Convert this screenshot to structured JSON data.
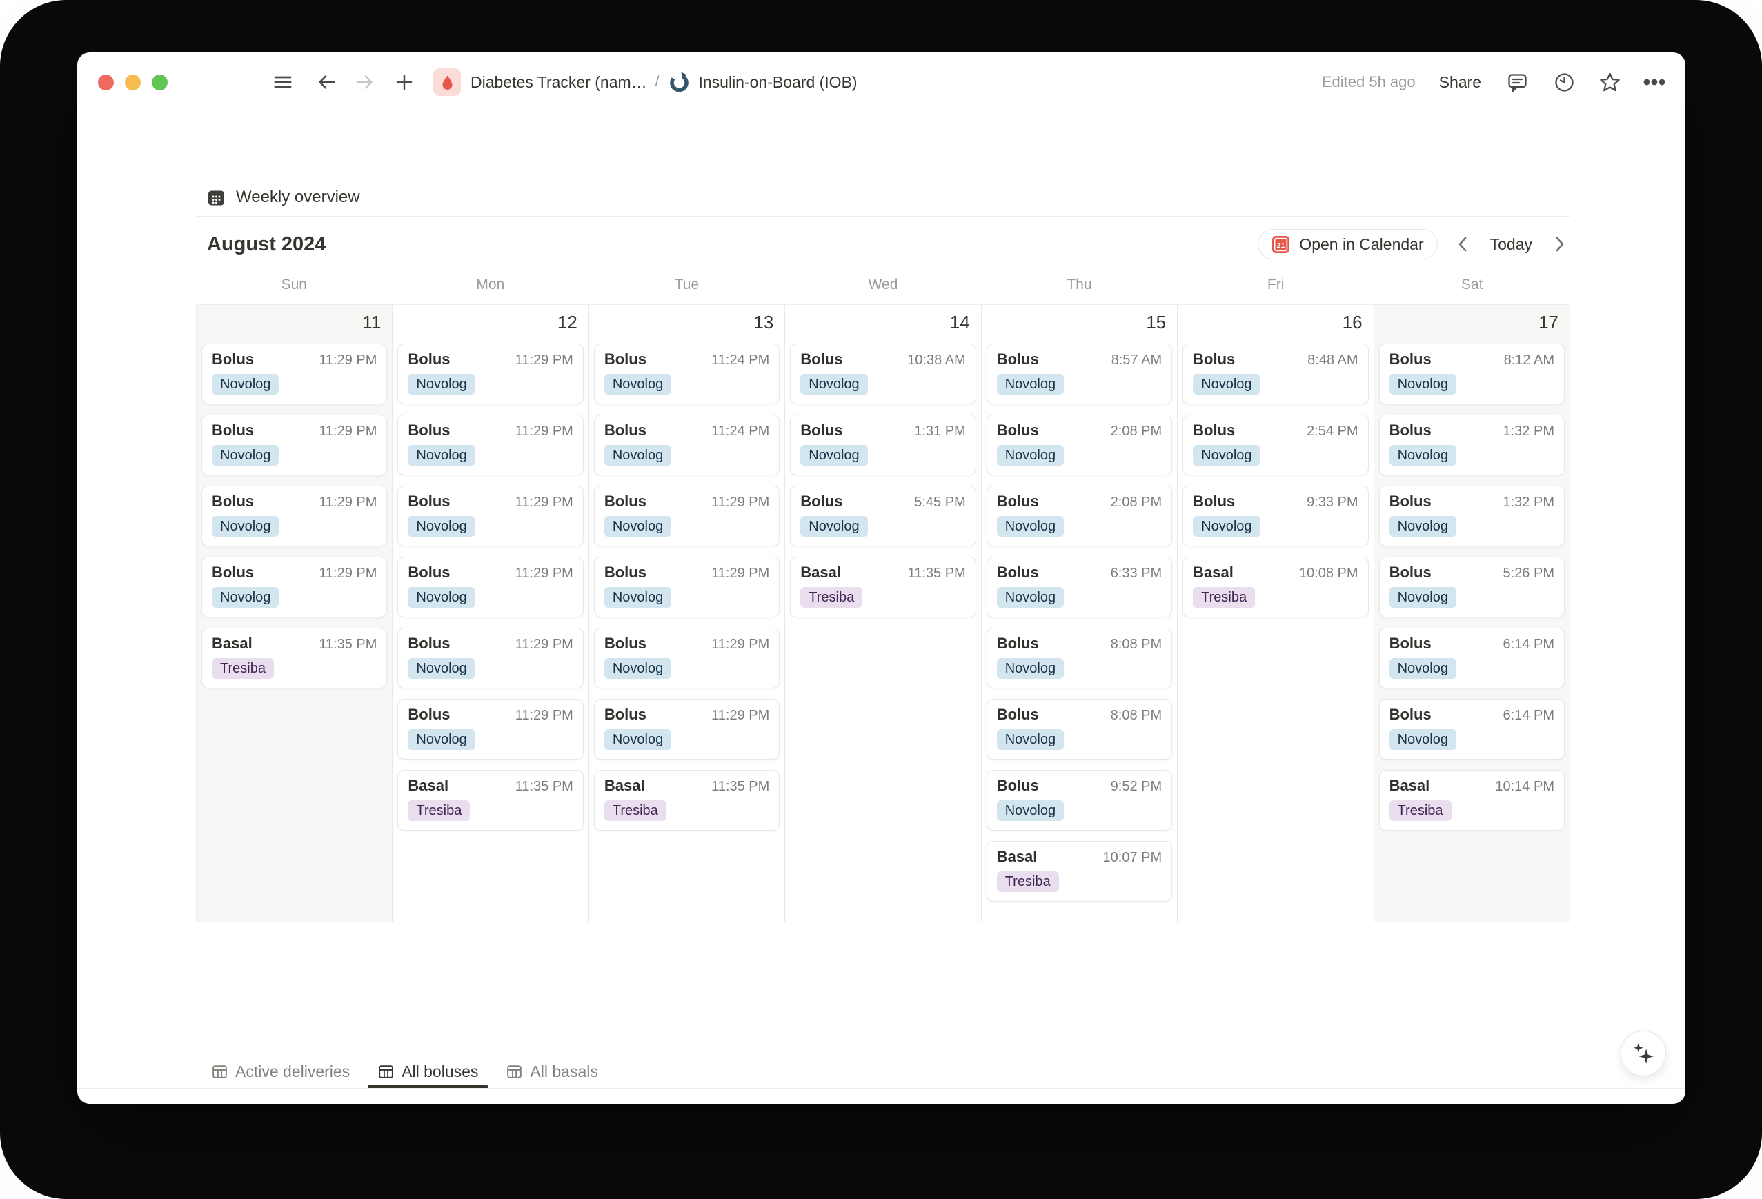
{
  "titlebar": {
    "breadcrumb1": "Diabetes Tracker (nam…",
    "separator": "/",
    "breadcrumb2": "Insulin-on-Board (IOB)",
    "edited": "Edited 5h ago",
    "share_label": "Share"
  },
  "view": {
    "title": "Weekly overview",
    "month_label": "August 2024",
    "open_in_calendar_label": "Open in Calendar",
    "calendar_badge": "21",
    "today_label": "Today"
  },
  "calendar": {
    "days": [
      {
        "weekday": "Sun",
        "date": "11",
        "weekend": true,
        "events": [
          {
            "title": "Bolus",
            "time": "11:29 PM",
            "tag": "Novolog",
            "tag_color": "blue"
          },
          {
            "title": "Bolus",
            "time": "11:29 PM",
            "tag": "Novolog",
            "tag_color": "blue"
          },
          {
            "title": "Bolus",
            "time": "11:29 PM",
            "tag": "Novolog",
            "tag_color": "blue"
          },
          {
            "title": "Bolus",
            "time": "11:29 PM",
            "tag": "Novolog",
            "tag_color": "blue"
          },
          {
            "title": "Basal",
            "time": "11:35 PM",
            "tag": "Tresiba",
            "tag_color": "purple"
          }
        ]
      },
      {
        "weekday": "Mon",
        "date": "12",
        "weekend": false,
        "events": [
          {
            "title": "Bolus",
            "time": "11:29 PM",
            "tag": "Novolog",
            "tag_color": "blue"
          },
          {
            "title": "Bolus",
            "time": "11:29 PM",
            "tag": "Novolog",
            "tag_color": "blue"
          },
          {
            "title": "Bolus",
            "time": "11:29 PM",
            "tag": "Novolog",
            "tag_color": "blue"
          },
          {
            "title": "Bolus",
            "time": "11:29 PM",
            "tag": "Novolog",
            "tag_color": "blue"
          },
          {
            "title": "Bolus",
            "time": "11:29 PM",
            "tag": "Novolog",
            "tag_color": "blue"
          },
          {
            "title": "Bolus",
            "time": "11:29 PM",
            "tag": "Novolog",
            "tag_color": "blue"
          },
          {
            "title": "Basal",
            "time": "11:35 PM",
            "tag": "Tresiba",
            "tag_color": "purple"
          }
        ]
      },
      {
        "weekday": "Tue",
        "date": "13",
        "weekend": false,
        "events": [
          {
            "title": "Bolus",
            "time": "11:24 PM",
            "tag": "Novolog",
            "tag_color": "blue"
          },
          {
            "title": "Bolus",
            "time": "11:24 PM",
            "tag": "Novolog",
            "tag_color": "blue"
          },
          {
            "title": "Bolus",
            "time": "11:29 PM",
            "tag": "Novolog",
            "tag_color": "blue"
          },
          {
            "title": "Bolus",
            "time": "11:29 PM",
            "tag": "Novolog",
            "tag_color": "blue"
          },
          {
            "title": "Bolus",
            "time": "11:29 PM",
            "tag": "Novolog",
            "tag_color": "blue"
          },
          {
            "title": "Bolus",
            "time": "11:29 PM",
            "tag": "Novolog",
            "tag_color": "blue"
          },
          {
            "title": "Basal",
            "time": "11:35 PM",
            "tag": "Tresiba",
            "tag_color": "purple"
          }
        ]
      },
      {
        "weekday": "Wed",
        "date": "14",
        "weekend": false,
        "events": [
          {
            "title": "Bolus",
            "time": "10:38 AM",
            "tag": "Novolog",
            "tag_color": "blue"
          },
          {
            "title": "Bolus",
            "time": "1:31 PM",
            "tag": "Novolog",
            "tag_color": "blue"
          },
          {
            "title": "Bolus",
            "time": "5:45 PM",
            "tag": "Novolog",
            "tag_color": "blue"
          },
          {
            "title": "Basal",
            "time": "11:35 PM",
            "tag": "Tresiba",
            "tag_color": "purple"
          }
        ]
      },
      {
        "weekday": "Thu",
        "date": "15",
        "weekend": false,
        "events": [
          {
            "title": "Bolus",
            "time": "8:57 AM",
            "tag": "Novolog",
            "tag_color": "blue"
          },
          {
            "title": "Bolus",
            "time": "2:08 PM",
            "tag": "Novolog",
            "tag_color": "blue"
          },
          {
            "title": "Bolus",
            "time": "2:08 PM",
            "tag": "Novolog",
            "tag_color": "blue"
          },
          {
            "title": "Bolus",
            "time": "6:33 PM",
            "tag": "Novolog",
            "tag_color": "blue"
          },
          {
            "title": "Bolus",
            "time": "8:08 PM",
            "tag": "Novolog",
            "tag_color": "blue"
          },
          {
            "title": "Bolus",
            "time": "8:08 PM",
            "tag": "Novolog",
            "tag_color": "blue"
          },
          {
            "title": "Bolus",
            "time": "9:52 PM",
            "tag": "Novolog",
            "tag_color": "blue"
          },
          {
            "title": "Basal",
            "time": "10:07 PM",
            "tag": "Tresiba",
            "tag_color": "purple"
          }
        ]
      },
      {
        "weekday": "Fri",
        "date": "16",
        "weekend": false,
        "events": [
          {
            "title": "Bolus",
            "time": "8:48 AM",
            "tag": "Novolog",
            "tag_color": "blue"
          },
          {
            "title": "Bolus",
            "time": "2:54 PM",
            "tag": "Novolog",
            "tag_color": "blue"
          },
          {
            "title": "Bolus",
            "time": "9:33 PM",
            "tag": "Novolog",
            "tag_color": "blue"
          },
          {
            "title": "Basal",
            "time": "10:08 PM",
            "tag": "Tresiba",
            "tag_color": "purple"
          }
        ]
      },
      {
        "weekday": "Sat",
        "date": "17",
        "weekend": true,
        "events": [
          {
            "title": "Bolus",
            "time": "8:12 AM",
            "tag": "Novolog",
            "tag_color": "blue"
          },
          {
            "title": "Bolus",
            "time": "1:32 PM",
            "tag": "Novolog",
            "tag_color": "blue"
          },
          {
            "title": "Bolus",
            "time": "1:32 PM",
            "tag": "Novolog",
            "tag_color": "blue"
          },
          {
            "title": "Bolus",
            "time": "5:26 PM",
            "tag": "Novolog",
            "tag_color": "blue"
          },
          {
            "title": "Bolus",
            "time": "6:14 PM",
            "tag": "Novolog",
            "tag_color": "blue"
          },
          {
            "title": "Bolus",
            "time": "6:14 PM",
            "tag": "Novolog",
            "tag_color": "blue"
          },
          {
            "title": "Basal",
            "time": "10:14 PM",
            "tag": "Tresiba",
            "tag_color": "purple"
          }
        ]
      }
    ]
  },
  "tabs": [
    {
      "label": "Active deliveries",
      "active": false
    },
    {
      "label": "All boluses",
      "active": true
    },
    {
      "label": "All basals",
      "active": false
    }
  ],
  "colors": {
    "tags": {
      "blue": {
        "bg": "#d3e5ef",
        "text": "#183347"
      },
      "purple": {
        "bg": "#e8deee",
        "text": "#412454"
      }
    },
    "weekend_bg": "#f7f7f5",
    "accent_red": "#e9564a"
  }
}
